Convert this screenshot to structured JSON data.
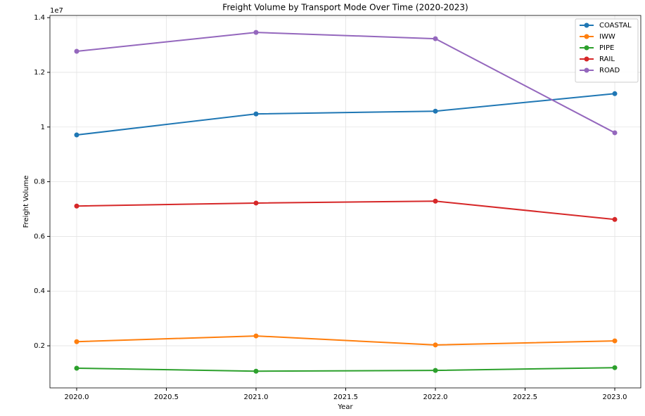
{
  "chart_data": {
    "type": "line",
    "title": "Freight Volume by Transport Mode Over Time (2020-2023)",
    "x_label": "Year",
    "y_label": "Freight Volume",
    "y_offset_label": "1e7",
    "x": [
      2020,
      2021,
      2022,
      2023
    ],
    "series": [
      {
        "name": "COASTAL",
        "color": "#1f77b4",
        "values": [
          0.971,
          1.048,
          1.058,
          1.122
        ]
      },
      {
        "name": "IWW",
        "color": "#ff7f0e",
        "values": [
          0.215,
          0.236,
          0.203,
          0.218
        ]
      },
      {
        "name": "PIPE",
        "color": "#2ca02c",
        "values": [
          0.118,
          0.107,
          0.11,
          0.12
        ]
      },
      {
        "name": "RAIL",
        "color": "#d62728",
        "values": [
          0.711,
          0.722,
          0.729,
          0.662
        ]
      },
      {
        "name": "ROAD",
        "color": "#9467bd",
        "values": [
          1.277,
          1.346,
          1.323,
          0.979
        ]
      }
    ],
    "xlim": [
      2019.851,
      2023.145
    ],
    "xticks": [
      {
        "value": 2020,
        "label": "2020.0"
      },
      {
        "value": 2020.5,
        "label": "2020.5"
      },
      {
        "value": 2021,
        "label": "2021.0"
      },
      {
        "value": 2021.5,
        "label": "2021.5"
      },
      {
        "value": 2022,
        "label": "2022.0"
      },
      {
        "value": 2022.5,
        "label": "2022.5"
      },
      {
        "value": 2023,
        "label": "2023.0"
      }
    ],
    "ylim": [
      0.046,
      1.408
    ],
    "yticks": [
      0.2,
      0.4,
      0.6,
      0.8,
      1.0,
      1.2,
      1.4
    ],
    "grid": true,
    "legend": "upper-right"
  }
}
